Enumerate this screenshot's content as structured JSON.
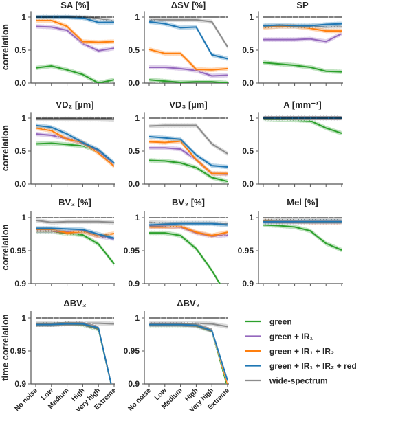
{
  "chart_data": {
    "type": "line",
    "categories": [
      "No noise",
      "Low",
      "Medium",
      "High",
      "Very high",
      "Extreme"
    ],
    "colors": {
      "green": "#2ca02c",
      "green + IR₁": "#9467bd",
      "green + IR₁ + IR₂": "#ff7f0e",
      "green + IR₁ + IR₂ + red": "#1f77b4",
      "wide-spectrum": "#8c8c8c",
      "reference": "#000000"
    },
    "legend": {
      "placement": "bottom-right",
      "entries": [
        "green",
        "green + IR₁",
        "green + IR₁ + IR₂",
        "green + IR₁ + IR₂ + red",
        "wide-spectrum"
      ]
    },
    "panels": [
      {
        "title": "SA [%]",
        "ylabel": "correlation",
        "ylim": [
          0,
          1.09
        ],
        "yticks": [
          "0.0",
          "0.5",
          "1"
        ],
        "ytick_values": [
          0,
          0.5,
          1
        ],
        "series": {
          "wide-spectrum": [
            1,
            1,
            1,
            1,
            0.98,
            0.94
          ],
          "green + IR₁ + IR₂ + red": [
            1,
            1,
            1,
            0.99,
            0.92,
            0.92
          ],
          "green + IR₁ + IR₂": [
            0.95,
            0.95,
            0.86,
            0.63,
            0.62,
            0.63
          ],
          "green + IR₁": [
            0.86,
            0.85,
            0.8,
            0.6,
            0.49,
            0.53
          ],
          "green": [
            0.23,
            0.26,
            0.2,
            0.13,
            0.0,
            0.05
          ]
        }
      },
      {
        "title": "ΔSV [%]",
        "ylabel": "",
        "ylim": [
          0,
          1.09
        ],
        "yticks": [
          "0.0",
          "0.5",
          "1"
        ],
        "ytick_values": [
          0,
          0.5,
          1
        ],
        "series": {
          "wide-spectrum": [
            0.96,
            0.96,
            0.96,
            0.96,
            0.93,
            0.55
          ],
          "green + IR₁ + IR₂ + red": [
            0.93,
            0.9,
            0.84,
            0.85,
            0.43,
            0.37
          ],
          "green + IR₁ + IR₂": [
            0.51,
            0.45,
            0.45,
            0.21,
            0.2,
            0.22
          ],
          "green + IR₁": [
            0.24,
            0.24,
            0.22,
            0.19,
            0.11,
            0.12
          ],
          "green": [
            0.05,
            0.03,
            0.01,
            0.02,
            0.02,
            0.0
          ]
        }
      },
      {
        "title": "SP",
        "ylabel": "",
        "ylim": [
          0,
          1.09
        ],
        "yticks": [
          "0.0",
          "0.5",
          "1"
        ],
        "ytick_values": [
          0,
          0.5,
          1
        ],
        "series": {
          "wide-spectrum": [
            0.86,
            0.86,
            0.86,
            0.86,
            0.85,
            0.86
          ],
          "green + IR₁ + IR₂ + red": [
            0.87,
            0.88,
            0.87,
            0.87,
            0.89,
            0.9
          ],
          "green + IR₁ + IR₂": [
            0.84,
            0.86,
            0.86,
            0.83,
            0.79,
            0.79
          ],
          "green + IR₁": [
            0.66,
            0.66,
            0.66,
            0.67,
            0.63,
            0.75
          ],
          "green": [
            0.31,
            0.29,
            0.27,
            0.24,
            0.18,
            0.17
          ]
        }
      },
      {
        "title": "VD₂ [µm]",
        "ylabel": "correlation",
        "ylim": [
          0,
          1.09
        ],
        "yticks": [
          "0.0",
          "0.5",
          "1"
        ],
        "ytick_values": [
          0,
          0.5,
          1
        ],
        "series": {
          "wide-spectrum": [
            0.99,
            0.99,
            0.99,
            0.99,
            0.99,
            0.98
          ],
          "green + IR₁ + IR₂ + red": [
            0.89,
            0.86,
            0.76,
            0.63,
            0.52,
            0.32
          ],
          "green + IR₁ + IR₂": [
            0.85,
            0.81,
            0.68,
            0.63,
            0.47,
            0.27
          ],
          "green + IR₁": [
            0.76,
            0.74,
            0.69,
            0.62,
            0.5,
            0.29
          ],
          "green": [
            0.61,
            0.62,
            0.6,
            0.58,
            0.5,
            0.3
          ]
        }
      },
      {
        "title": "VD₃ [µm]",
        "ylabel": "",
        "ylim": [
          0,
          1.09
        ],
        "yticks": [
          "0.0",
          "0.5",
          "1"
        ],
        "ytick_values": [
          0,
          0.5,
          1
        ],
        "series": {
          "wide-spectrum": [
            0.88,
            0.89,
            0.89,
            0.89,
            0.61,
            0.46
          ],
          "green + IR₁ + IR₂ + red": [
            0.72,
            0.7,
            0.68,
            0.44,
            0.28,
            0.26
          ],
          "green + IR₁ + IR₂": [
            0.64,
            0.63,
            0.65,
            0.37,
            0.16,
            0.16
          ],
          "green + IR₁": [
            0.55,
            0.55,
            0.53,
            0.37,
            0.16,
            0.15
          ],
          "green": [
            0.36,
            0.35,
            0.32,
            0.25,
            0.1,
            0.04
          ]
        }
      },
      {
        "title": "A [mm⁻¹]",
        "ylabel": "",
        "ylim": [
          0,
          1.09
        ],
        "yticks": [
          "0.0",
          "0.5",
          "1"
        ],
        "ytick_values": [
          0,
          0.5,
          1
        ],
        "series": {
          "wide-spectrum": [
            1,
            1,
            1,
            1,
            1,
            1
          ],
          "green + IR₁ + IR₂ + red": [
            1,
            1,
            1,
            1,
            1,
            1
          ],
          "green + IR₁": [
            1,
            1,
            1,
            1,
            1,
            1
          ],
          "green + IR₁ + IR₂": [
            1,
            1,
            1,
            1,
            1,
            1
          ],
          "green": [
            0.99,
            0.98,
            0.97,
            0.96,
            0.85,
            0.77
          ]
        }
      },
      {
        "title": "BV₂ [%]",
        "ylabel": "correlation",
        "ylim": [
          0.9,
          1.0104
        ],
        "yticks": [
          "0.9",
          "0.95",
          "1"
        ],
        "ytick_values": [
          0.9,
          0.95,
          1
        ],
        "series": {
          "wide-spectrum": [
            0.996,
            0.993,
            0.994,
            0.994,
            0.994,
            0.993
          ],
          "green + IR₁ + IR₂ + red": [
            0.984,
            0.984,
            0.983,
            0.982,
            0.975,
            0.969
          ],
          "green + IR₁": [
            0.98,
            0.98,
            0.978,
            0.98,
            0.972,
            0.968
          ],
          "green + IR₁ + IR₂": [
            0.982,
            0.982,
            0.977,
            0.979,
            0.972,
            0.976
          ],
          "green": [
            0.979,
            0.979,
            0.976,
            0.974,
            0.96,
            0.93
          ]
        }
      },
      {
        "title": "BV₃ [%]",
        "ylabel": "",
        "ylim": [
          0.9,
          1.0104
        ],
        "yticks": [
          "0.9",
          "0.95",
          "1"
        ],
        "ytick_values": [
          0.9,
          0.95,
          1
        ],
        "series": {
          "wide-spectrum": [
            0.993,
            0.992,
            0.992,
            0.992,
            0.992,
            0.991
          ],
          "green + IR₁ + IR₂ + red": [
            0.989,
            0.99,
            0.991,
            0.991,
            0.991,
            0.989
          ],
          "green + IR₁": [
            0.987,
            0.987,
            0.986,
            0.977,
            0.972,
            0.974
          ],
          "green + IR₁ + IR₂": [
            0.986,
            0.986,
            0.987,
            0.978,
            0.973,
            0.978
          ],
          "green": [
            0.977,
            0.977,
            0.973,
            0.953,
            0.92,
            0.88
          ]
        }
      },
      {
        "title": "Mel [%]",
        "ylabel": "",
        "ylim": [
          0.9,
          1.0104
        ],
        "yticks": [
          "0.9",
          "0.95",
          "1"
        ],
        "ytick_values": [
          0.9,
          0.95,
          1
        ],
        "series": {
          "wide-spectrum": [
            0.997,
            0.997,
            0.997,
            0.997,
            0.997,
            0.997
          ],
          "green + IR₁ + IR₂ + red": [
            0.994,
            0.994,
            0.994,
            0.994,
            0.994,
            0.994
          ],
          "green + IR₁": [
            0.993,
            0.993,
            0.993,
            0.993,
            0.993,
            0.993
          ],
          "green + IR₁ + IR₂": [
            0.995,
            0.994,
            0.994,
            0.993,
            0.993,
            0.993
          ],
          "green": [
            0.989,
            0.988,
            0.986,
            0.98,
            0.961,
            0.951
          ]
        }
      },
      {
        "title": "ΔBV₂",
        "ylabel": "time correlation",
        "ylim": [
          0.9,
          1.0104
        ],
        "yticks": [
          "0.9",
          "0.95",
          "1"
        ],
        "ytick_values": [
          0.9,
          0.95,
          1
        ],
        "series": {
          "wide-spectrum": [
            0.992,
            0.992,
            0.992,
            0.992,
            0.992,
            0.991
          ],
          "green": [
            0.99,
            0.99,
            0.991,
            0.99,
            0.983,
            0.88
          ],
          "green + IR₁": [
            0.99,
            0.99,
            0.991,
            0.991,
            0.985,
            0.88
          ],
          "green + IR₁ + IR₂ + red": [
            0.99,
            0.99,
            0.991,
            0.991,
            0.985,
            0.88
          ],
          "green + IR₁ + IR₂": [
            0.99,
            0.99,
            0.991,
            0.991,
            0.985,
            0.88
          ]
        }
      },
      {
        "title": "ΔBV₃",
        "ylabel": "",
        "ylim": [
          0.9,
          1.0104
        ],
        "yticks": [
          "0.9",
          "0.95",
          "1"
        ],
        "ytick_values": [
          0.9,
          0.95,
          1
        ],
        "series": {
          "wide-spectrum": [
            0.992,
            0.992,
            0.992,
            0.992,
            0.991,
            0.987
          ],
          "green": [
            0.989,
            0.989,
            0.989,
            0.988,
            0.98,
            0.895
          ],
          "green + IR₁": [
            0.99,
            0.99,
            0.99,
            0.989,
            0.981,
            0.9
          ],
          "green + IR₁ + IR₂ + red": [
            0.99,
            0.99,
            0.99,
            0.989,
            0.981,
            0.905
          ],
          "green + IR₁ + IR₂": [
            0.99,
            0.99,
            0.99,
            0.989,
            0.981,
            0.9
          ]
        }
      }
    ]
  }
}
